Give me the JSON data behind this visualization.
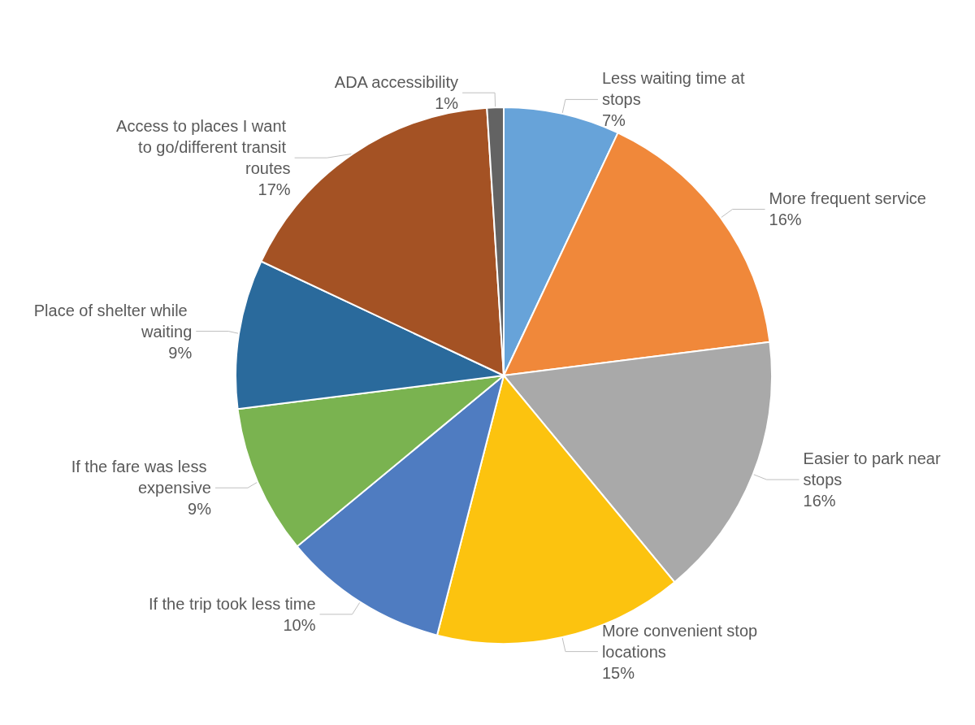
{
  "chart_data": {
    "type": "pie",
    "categories": [
      "Less waiting time at stops",
      "More frequent service",
      "Easier to park near stops",
      "More convenient stop locations",
      "If the trip took less time",
      "If the fare was less expensive",
      "Place of shelter while waiting",
      "Access to places I want to go/different transit routes",
      "ADA accessibility"
    ],
    "values": [
      7,
      16,
      16,
      15,
      10,
      9,
      9,
      17,
      1
    ],
    "value_labels": [
      "7%",
      "16%",
      "16%",
      "15%",
      "10%",
      "9%",
      "9%",
      "17%",
      "1%"
    ],
    "colors": [
      "#67a3d9",
      "#f0883a",
      "#a9a9a9",
      "#fcc30f",
      "#4f7cc1",
      "#7ab350",
      "#2a6a9c",
      "#a45224",
      "#636363"
    ],
    "legend": false
  }
}
